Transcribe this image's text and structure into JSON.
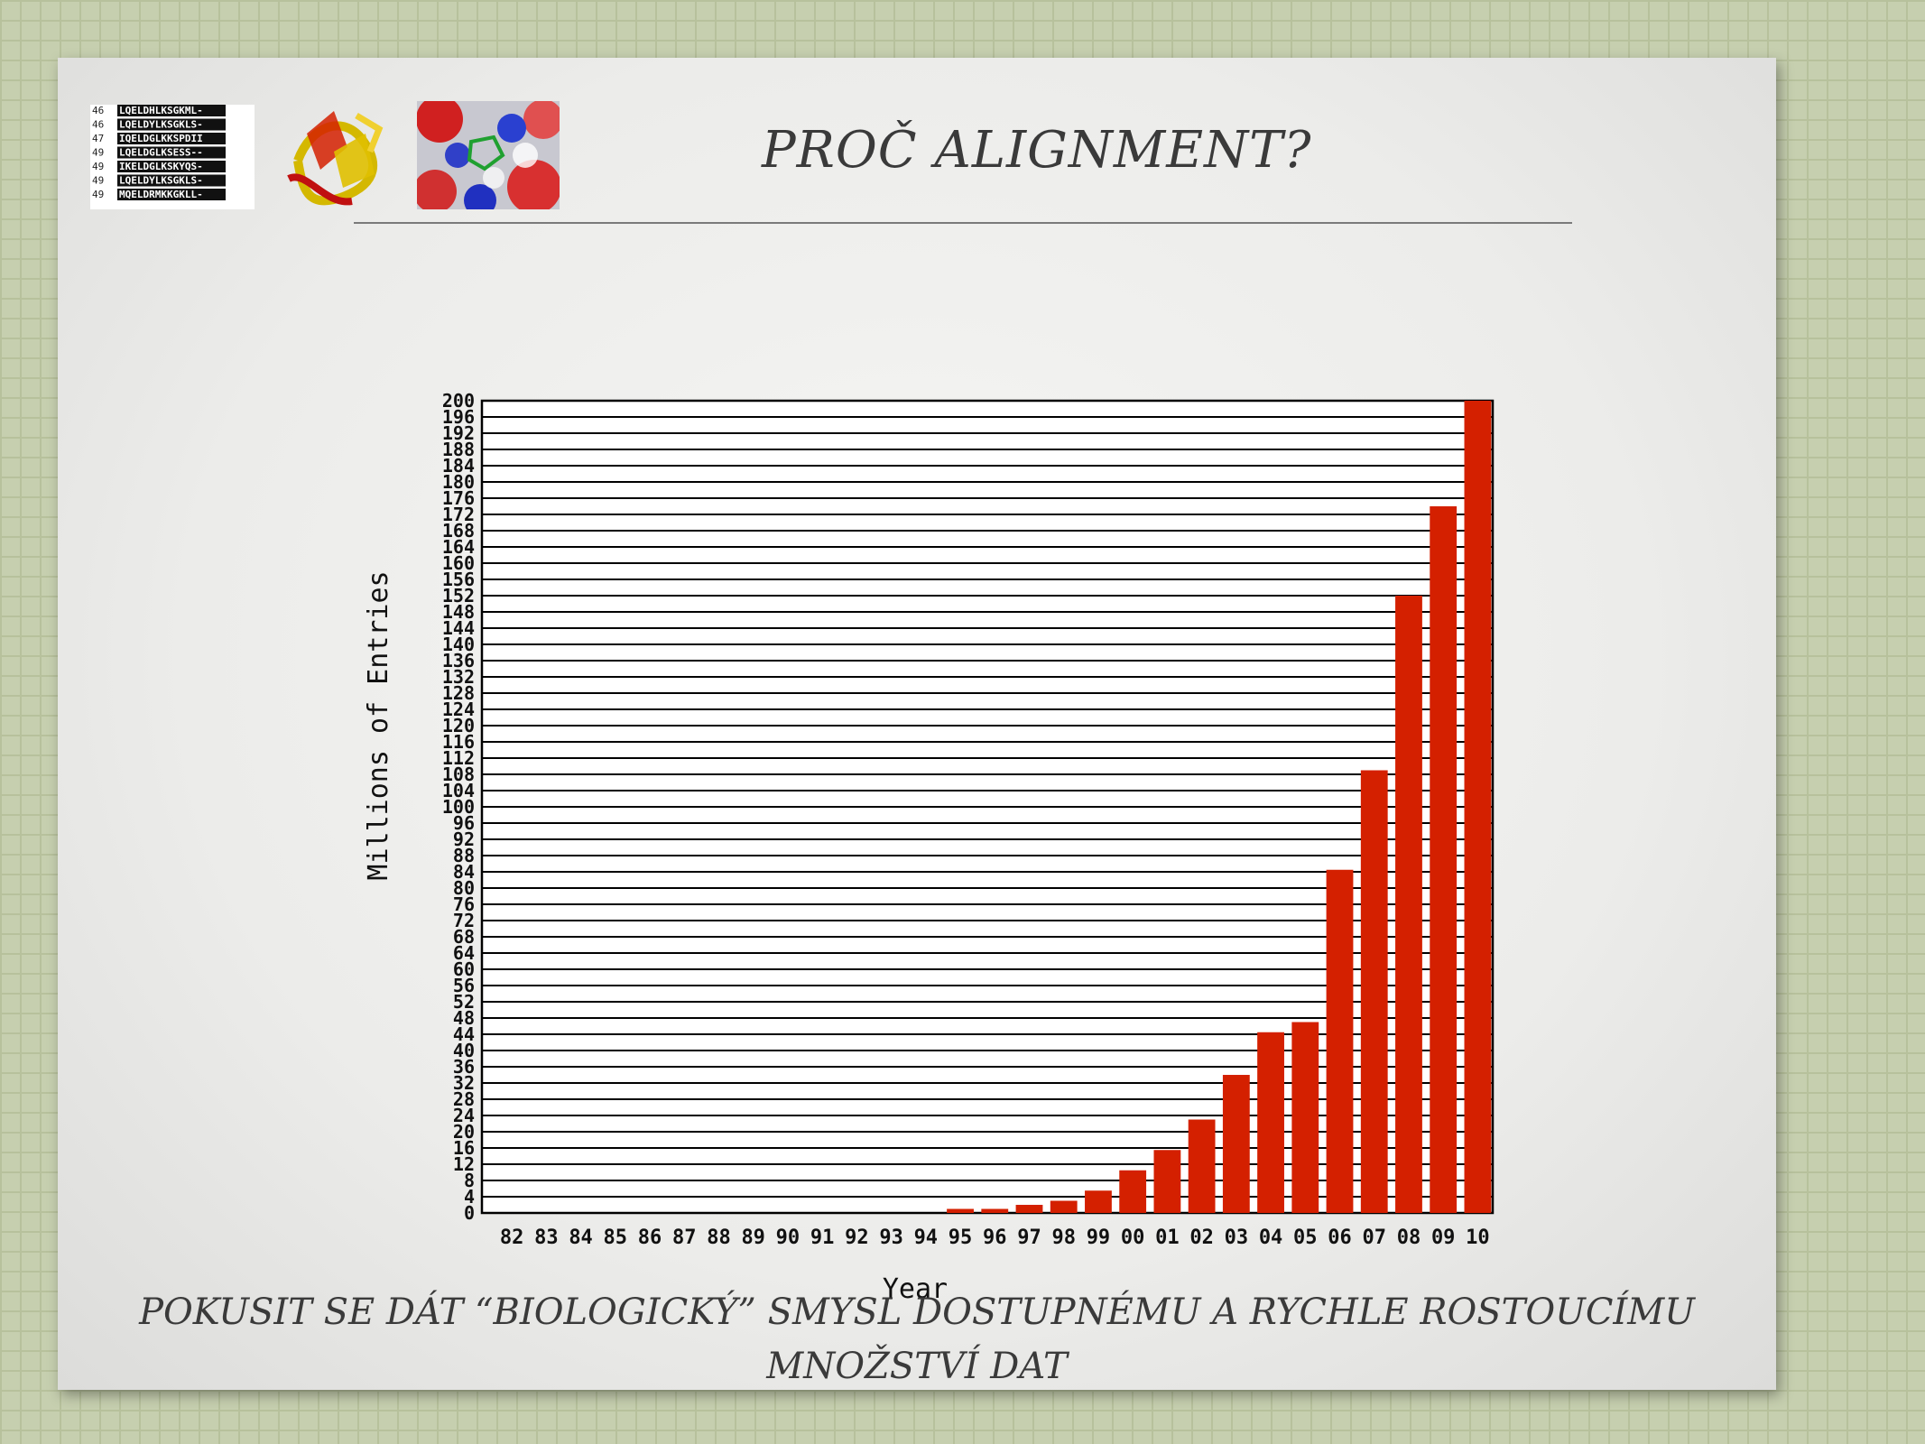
{
  "slide": {
    "title": "PROČ ALIGNMENT?",
    "footer_line1": "POKUSIT SE DÁT “BIOLOGICKÝ” SMYSL DOSTUPNÉMU A RYCHLE ROSTOUCÍMU",
    "footer_line2": "MNOŽSTVÍ DAT"
  },
  "thumbnails": {
    "sequence_rows": [
      {
        "num": "46",
        "seq": "LQELDHLKSGKML-"
      },
      {
        "num": "46",
        "seq": "LQELDYLKSGKLS-"
      },
      {
        "num": "47",
        "seq": "IQELDGLKKSPDII"
      },
      {
        "num": "49",
        "seq": "LQELDGLKSESS--"
      },
      {
        "num": "49",
        "seq": "IKELDGLKSKYQS-"
      },
      {
        "num": "49",
        "seq": "LQELDYLKSGKLS-"
      },
      {
        "num": "49",
        "seq": "MQELDRMKKGKLL-"
      }
    ]
  },
  "chart_data": {
    "type": "bar",
    "xlabel": "Year",
    "ylabel": "Millions of Entries",
    "ylim": [
      0,
      200
    ],
    "yticks": [
      0,
      4,
      8,
      12,
      16,
      20,
      24,
      28,
      32,
      36,
      40,
      44,
      48,
      52,
      56,
      60,
      64,
      68,
      72,
      76,
      80,
      84,
      88,
      92,
      96,
      100,
      104,
      108,
      112,
      116,
      120,
      124,
      128,
      132,
      136,
      140,
      144,
      148,
      152,
      156,
      160,
      164,
      168,
      172,
      176,
      180,
      184,
      188,
      192,
      196,
      200
    ],
    "categories": [
      "82",
      "83",
      "84",
      "85",
      "86",
      "87",
      "88",
      "89",
      "90",
      "91",
      "92",
      "93",
      "94",
      "95",
      "96",
      "97",
      "98",
      "99",
      "00",
      "01",
      "02",
      "03",
      "04",
      "05",
      "06",
      "07",
      "08",
      "09",
      "10"
    ],
    "values": [
      0,
      0,
      0,
      0,
      0,
      0,
      0,
      0,
      0,
      0,
      0,
      0,
      0,
      1,
      1,
      2,
      3,
      5.5,
      10.5,
      15.5,
      23,
      34,
      44.5,
      47,
      84.5,
      109,
      152,
      174,
      200
    ],
    "grid": true,
    "colors": {
      "bar": "#d42000",
      "grid": "#000000"
    }
  }
}
